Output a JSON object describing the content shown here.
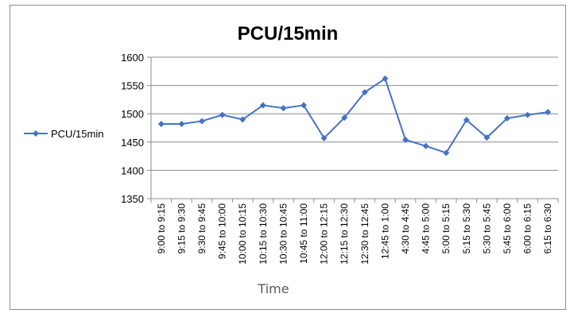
{
  "chart_data": {
    "type": "line",
    "title": "PCU/15min",
    "xlabel": "Time",
    "ylabel": "",
    "ylim": [
      1350,
      1600
    ],
    "yticks": [
      1350,
      1400,
      1450,
      1500,
      1550,
      1600
    ],
    "grid": "y-major",
    "legend": "left",
    "categories": [
      "9:00 to 9:15",
      "9:15 to 9:30",
      "9:30 to 9:45",
      "9:45 to 10:00",
      "10:00 to 10:15",
      "10:15 to 10:30",
      "10:30 to 10:45",
      "10:45 to 11:00",
      "12:00 to 12:15",
      "12:15 to 12:30",
      "12:30 to 12:45",
      "12:45 to 1:00",
      "4:30 to 4:45",
      "4:45 to 5:00",
      "5:00 to 5:15",
      "5:15 to 5:30",
      "5:30 to 5:45",
      "5:45 to 6:00",
      "6:00 to 6:15",
      "6:15 to 6:30"
    ],
    "series": [
      {
        "name": "PCU/15min",
        "color": "#4472c4",
        "values": [
          1482,
          1482,
          1487,
          1498,
          1490,
          1515,
          1510,
          1515,
          1457,
          1493,
          1538,
          1562,
          1454,
          1443,
          1431,
          1489,
          1458,
          1492,
          1498,
          1503
        ]
      }
    ]
  }
}
